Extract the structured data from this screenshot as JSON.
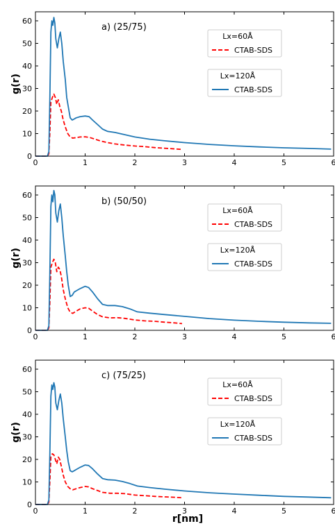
{
  "figure": {
    "xlabel": "r[nm]"
  },
  "chart_data": [
    {
      "type": "line",
      "title": "a) (25/75)",
      "xlabel": "",
      "ylabel": "g(r)",
      "xlim": [
        0,
        6
      ],
      "ylim": [
        0,
        64
      ],
      "xticks": [
        0,
        1,
        2,
        3,
        4,
        5,
        6
      ],
      "yticks": [
        0,
        10,
        20,
        30,
        40,
        50,
        60
      ],
      "legend": [
        {
          "header": "Lx=60Å",
          "label": "CTAB-SDS",
          "color": "#ff0000",
          "style": "dashed"
        },
        {
          "header": "Lx=120Å",
          "label": "CTAB-SDS",
          "color": "#1f77b4",
          "style": "solid"
        }
      ],
      "series": [
        {
          "name": "Lx=60Å CTAB-SDS",
          "color": "#ff0000",
          "dashed": true,
          "x": [
            0,
            0.24,
            0.27,
            0.29,
            0.31,
            0.34,
            0.37,
            0.4,
            0.43,
            0.46,
            0.49,
            0.52,
            0.56,
            0.6,
            0.65,
            0.7,
            0.75,
            0.82,
            0.9,
            1.0,
            1.1,
            1.2,
            1.3,
            1.45,
            1.6,
            1.8,
            2.0,
            2.2,
            2.4,
            2.6,
            2.8,
            2.95
          ],
          "y": [
            0,
            0,
            1,
            10,
            24,
            26,
            27.5,
            26,
            23,
            25,
            22,
            20,
            16,
            13,
            10,
            8.5,
            8,
            8.2,
            8.5,
            8.6,
            8.2,
            7.5,
            6.8,
            6,
            5.4,
            4.9,
            4.5,
            4.2,
            3.8,
            3.5,
            3.2,
            3
          ]
        },
        {
          "name": "Lx=120Å CTAB-SDS",
          "color": "#1f77b4",
          "dashed": false,
          "x": [
            0,
            0.24,
            0.27,
            0.29,
            0.31,
            0.33,
            0.35,
            0.37,
            0.39,
            0.41,
            0.44,
            0.47,
            0.5,
            0.53,
            0.56,
            0.6,
            0.63,
            0.66,
            0.7,
            0.74,
            0.78,
            0.82,
            0.9,
            1.0,
            1.08,
            1.15,
            1.25,
            1.35,
            1.45,
            1.6,
            1.8,
            2.0,
            2.3,
            2.6,
            3.0,
            3.5,
            4.0,
            4.5,
            5.0,
            5.5,
            5.95
          ],
          "y": [
            0,
            0,
            2,
            25,
            55,
            60,
            58,
            61.5,
            59,
            52,
            48,
            52,
            55,
            50,
            42,
            34,
            26,
            22,
            17,
            16,
            16.5,
            17,
            17.5,
            17.8,
            17.5,
            16,
            14,
            12,
            11,
            10.5,
            9.5,
            8.5,
            7.5,
            6.8,
            6,
            5.2,
            4.6,
            4.1,
            3.7,
            3.4,
            3.1
          ]
        }
      ]
    },
    {
      "type": "line",
      "title": "b) (50/50)",
      "xlabel": "",
      "ylabel": "g(r)",
      "xlim": [
        0,
        6
      ],
      "ylim": [
        0,
        64
      ],
      "xticks": [
        0,
        1,
        2,
        3,
        4,
        5,
        6
      ],
      "yticks": [
        0,
        10,
        20,
        30,
        40,
        50,
        60
      ],
      "legend": [
        {
          "header": "Lx=60Å",
          "label": "CTAB-SDS",
          "color": "#ff0000",
          "style": "dashed"
        },
        {
          "header": "Lx=120Å",
          "label": "CTAB-SDS",
          "color": "#1f77b4",
          "style": "solid"
        }
      ],
      "series": [
        {
          "name": "Lx=60Å CTAB-SDS",
          "color": "#ff0000",
          "dashed": true,
          "x": [
            0,
            0.24,
            0.27,
            0.29,
            0.31,
            0.34,
            0.37,
            0.4,
            0.43,
            0.46,
            0.49,
            0.52,
            0.56,
            0.6,
            0.65,
            0.7,
            0.75,
            0.82,
            0.9,
            1.0,
            1.07,
            1.15,
            1.25,
            1.35,
            1.5,
            1.65,
            1.8,
            2.0,
            2.2,
            2.4,
            2.6,
            2.8,
            2.95
          ],
          "y": [
            0,
            0,
            1,
            12,
            28,
            30,
            31.5,
            30,
            26,
            28,
            27,
            24,
            18,
            14,
            10,
            8,
            7.5,
            8.5,
            9.5,
            10,
            9.8,
            8.5,
            7,
            6,
            5.5,
            5.6,
            5.3,
            4.6,
            4.2,
            4,
            3.6,
            3.3,
            3
          ]
        },
        {
          "name": "Lx=120Å CTAB-SDS",
          "color": "#1f77b4",
          "dashed": false,
          "x": [
            0,
            0.24,
            0.27,
            0.29,
            0.31,
            0.33,
            0.35,
            0.37,
            0.39,
            0.41,
            0.44,
            0.47,
            0.5,
            0.53,
            0.56,
            0.6,
            0.63,
            0.66,
            0.7,
            0.74,
            0.78,
            0.82,
            0.9,
            1.0,
            1.07,
            1.15,
            1.25,
            1.35,
            1.45,
            1.6,
            1.75,
            1.9,
            2.05,
            2.3,
            2.6,
            3.0,
            3.5,
            4.0,
            4.5,
            5.0,
            5.5,
            5.95
          ],
          "y": [
            0,
            0,
            2,
            25,
            55,
            60,
            57,
            62,
            60,
            52,
            48,
            53,
            56,
            50,
            42,
            33,
            26,
            20,
            15,
            15.5,
            17,
            17.5,
            18.5,
            19.5,
            19,
            17,
            14,
            11.5,
            11,
            11,
            10.5,
            9.5,
            8.2,
            7.6,
            7,
            6.2,
            5.2,
            4.5,
            4,
            3.6,
            3.3,
            3.1
          ]
        }
      ]
    },
    {
      "type": "line",
      "title": "c) (75/25)",
      "xlabel": "r[nm]",
      "ylabel": "g(r)",
      "xlim": [
        0,
        6
      ],
      "ylim": [
        0,
        64
      ],
      "xticks": [
        0,
        1,
        2,
        3,
        4,
        5,
        6
      ],
      "yticks": [
        0,
        10,
        20,
        30,
        40,
        50,
        60
      ],
      "legend": [
        {
          "header": "Lx=60Å",
          "label": "CTAB-SDS",
          "color": "#ff0000",
          "style": "dashed"
        },
        {
          "header": "Lx=120Å",
          "label": "CTAB-SDS",
          "color": "#1f77b4",
          "style": "solid"
        }
      ],
      "series": [
        {
          "name": "Lx=60Å CTAB-SDS",
          "color": "#ff0000",
          "dashed": true,
          "x": [
            0,
            0.24,
            0.27,
            0.29,
            0.31,
            0.34,
            0.37,
            0.4,
            0.43,
            0.46,
            0.49,
            0.52,
            0.56,
            0.6,
            0.65,
            0.7,
            0.75,
            0.82,
            0.9,
            1.0,
            1.07,
            1.15,
            1.25,
            1.35,
            1.5,
            1.65,
            1.8,
            2.0,
            2.2,
            2.4,
            2.6,
            2.8,
            2.95
          ],
          "y": [
            0,
            0,
            1,
            10,
            21,
            22.5,
            22,
            20,
            18,
            21,
            20,
            17,
            13,
            10,
            8,
            7,
            6.5,
            7,
            7.5,
            8,
            7.8,
            7,
            6.2,
            5.4,
            5,
            5,
            4.8,
            4.2,
            3.9,
            3.6,
            3.4,
            3.2,
            3
          ]
        },
        {
          "name": "Lx=120Å CTAB-SDS",
          "color": "#1f77b4",
          "dashed": false,
          "x": [
            0,
            0.24,
            0.27,
            0.29,
            0.31,
            0.33,
            0.35,
            0.37,
            0.39,
            0.41,
            0.44,
            0.47,
            0.5,
            0.53,
            0.56,
            0.6,
            0.63,
            0.66,
            0.7,
            0.74,
            0.78,
            0.82,
            0.9,
            1.0,
            1.07,
            1.15,
            1.25,
            1.35,
            1.45,
            1.6,
            1.75,
            1.9,
            2.05,
            2.3,
            2.6,
            3.0,
            3.5,
            4.0,
            4.5,
            5.0,
            5.5,
            5.95
          ],
          "y": [
            0,
            0,
            2,
            22,
            48,
            53,
            51,
            54,
            52,
            45,
            42,
            46,
            49,
            45,
            38,
            30,
            24,
            19,
            15,
            14.5,
            15,
            15.5,
            16.5,
            17.5,
            17.3,
            15.8,
            13.5,
            11.5,
            11,
            10.8,
            10.2,
            9.3,
            8.2,
            7.5,
            6.8,
            6,
            5.2,
            4.6,
            4.1,
            3.6,
            3.3,
            3
          ]
        }
      ]
    }
  ]
}
